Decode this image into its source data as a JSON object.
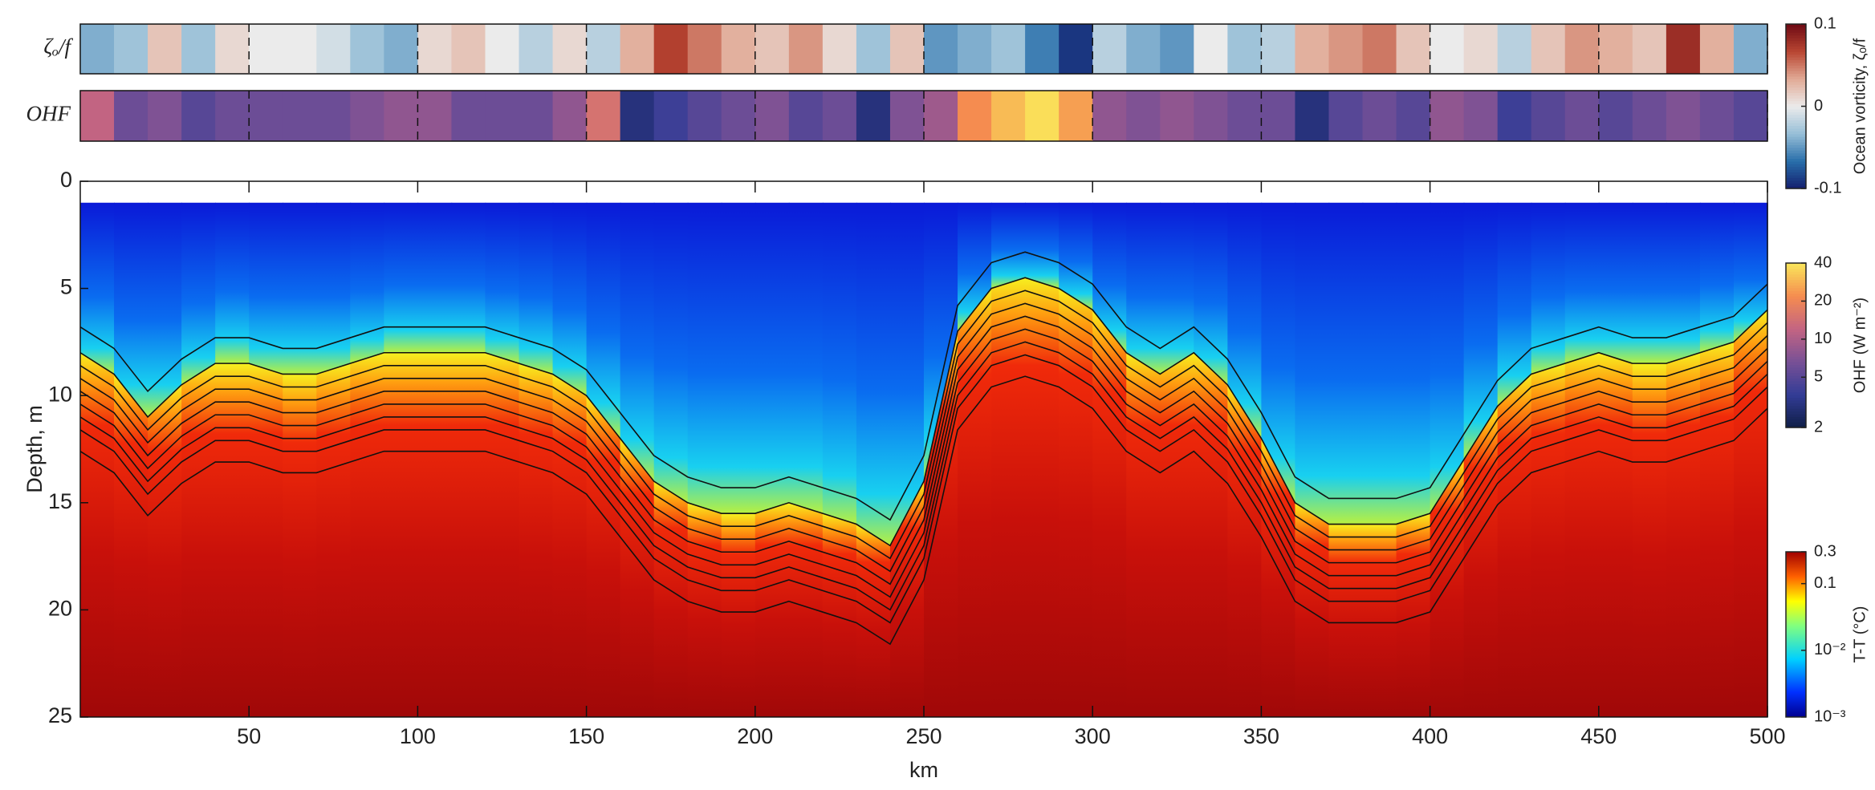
{
  "chart_data": [
    {
      "type": "strip",
      "label": "ζₒ/f",
      "palette": "diverging",
      "x": [
        5,
        15,
        25,
        35,
        45,
        55,
        65,
        75,
        85,
        95,
        105,
        115,
        125,
        135,
        145,
        155,
        165,
        175,
        185,
        195,
        205,
        215,
        225,
        235,
        245,
        255,
        265,
        275,
        285,
        295,
        305,
        315,
        325,
        335,
        345,
        355,
        365,
        375,
        385,
        395,
        405,
        415,
        425,
        435,
        445,
        455,
        465,
        475,
        485,
        495
      ],
      "values": [
        -0.04,
        -0.03,
        0.02,
        -0.03,
        0.01,
        0,
        0,
        -0.01,
        -0.03,
        -0.04,
        0.01,
        0.02,
        0,
        -0.02,
        0.01,
        -0.02,
        0.03,
        0.07,
        0.05,
        0.03,
        0.02,
        0.04,
        0.01,
        -0.03,
        0.02,
        -0.05,
        -0.04,
        -0.03,
        -0.06,
        -0.09,
        -0.02,
        -0.04,
        -0.05,
        0,
        -0.03,
        -0.02,
        0.03,
        0.04,
        0.05,
        0.02,
        0,
        0.01,
        -0.02,
        0.02,
        0.04,
        0.03,
        0.02,
        0.08,
        0.03,
        -0.04
      ],
      "colorbar": {
        "label": "Ocean vorticity, ζₒ/f",
        "lim": [
          -0.1,
          0.1
        ],
        "ticks": [
          0.1,
          0,
          -0.1
        ],
        "log": false
      }
    },
    {
      "type": "strip",
      "label": "OHF",
      "palette": "ohf",
      "x": [
        5,
        15,
        25,
        35,
        45,
        55,
        65,
        75,
        85,
        95,
        105,
        115,
        125,
        135,
        145,
        155,
        165,
        175,
        185,
        195,
        205,
        215,
        225,
        235,
        245,
        255,
        265,
        275,
        285,
        295,
        305,
        315,
        325,
        335,
        345,
        355,
        365,
        375,
        385,
        395,
        405,
        415,
        425,
        435,
        445,
        455,
        465,
        475,
        485,
        495
      ],
      "values": [
        12,
        6,
        7,
        5,
        6,
        6,
        6,
        6,
        7,
        8,
        8,
        6,
        6,
        6,
        8,
        15,
        3,
        4,
        5,
        6,
        7,
        5,
        6,
        3,
        7,
        9,
        22,
        30,
        38,
        25,
        8,
        7,
        8,
        7,
        6,
        6,
        3,
        5,
        6,
        5,
        8,
        7,
        4,
        5,
        6,
        5,
        6,
        7,
        6,
        5
      ],
      "colorbar": {
        "label": "OHF (W m⁻²)",
        "lim": [
          2,
          40
        ],
        "ticks": [
          40,
          20,
          10,
          5,
          2
        ],
        "log": true
      }
    },
    {
      "type": "section",
      "xlabel": "km",
      "ylabel": "Depth, m",
      "x": [
        0,
        10,
        20,
        30,
        40,
        50,
        60,
        70,
        80,
        90,
        100,
        110,
        120,
        130,
        140,
        150,
        160,
        170,
        180,
        190,
        200,
        210,
        220,
        230,
        240,
        250,
        260,
        270,
        280,
        290,
        300,
        310,
        320,
        330,
        340,
        350,
        360,
        370,
        380,
        390,
        400,
        410,
        420,
        430,
        440,
        450,
        460,
        470,
        480,
        490,
        500
      ],
      "values": [
        8,
        9,
        11,
        9.5,
        8.5,
        8.5,
        9,
        9,
        8.5,
        8,
        8,
        8,
        8,
        8.5,
        9,
        10,
        12,
        14,
        15,
        15.5,
        15.5,
        15,
        15.5,
        16,
        17,
        14,
        7,
        5,
        4.5,
        5,
        6,
        8,
        9,
        8,
        9.5,
        12,
        15,
        16,
        16,
        16,
        15.5,
        13,
        10.5,
        9,
        8.5,
        8,
        8.5,
        8.5,
        8,
        7.5,
        6
      ],
      "xlim": [
        0,
        500
      ],
      "xticks": [
        50,
        100,
        150,
        200,
        250,
        300,
        350,
        400,
        450,
        500
      ],
      "ylim": [
        0,
        25
      ],
      "yticks": [
        0,
        5,
        10,
        15,
        20,
        25
      ],
      "y_reversed": true,
      "colorbar": {
        "label": "T-T (°C)",
        "lim": [
          0.001,
          0.3
        ],
        "ticks": [
          0.3,
          0.1,
          {
            "value": 0.01,
            "label": "10⁻²"
          },
          {
            "value": 0.001,
            "label": "10⁻³"
          }
        ],
        "log": true
      }
    }
  ]
}
